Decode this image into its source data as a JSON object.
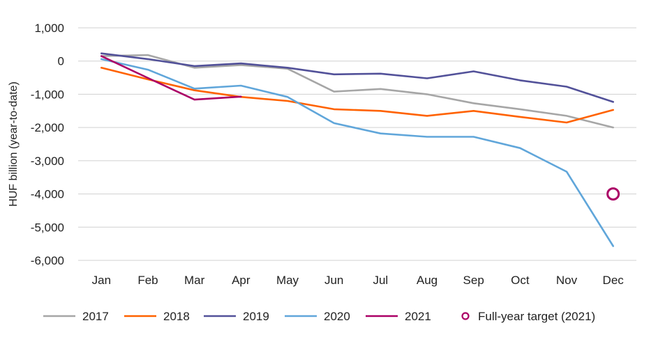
{
  "chart_data": {
    "type": "line",
    "title": "",
    "xlabel": "",
    "ylabel": "HUF billion (year-to-date)",
    "categories": [
      "Jan",
      "Feb",
      "Mar",
      "Apr",
      "May",
      "Jun",
      "Jul",
      "Aug",
      "Sep",
      "Oct",
      "Nov",
      "Dec"
    ],
    "ylim": [
      -6000,
      1000
    ],
    "yticks": [
      1000,
      0,
      -1000,
      -2000,
      -3000,
      -4000,
      -5000,
      -6000
    ],
    "ytick_labels": [
      "1,000",
      "0",
      "-1,000",
      "-2,000",
      "-3,000",
      "-4,000",
      "-5,000",
      "-6,000"
    ],
    "grid": "horizontal",
    "legend_position": "bottom",
    "series": [
      {
        "name": "2017",
        "color": "#a6a6a6",
        "values": [
          150,
          180,
          -200,
          -120,
          -230,
          -920,
          -840,
          -1000,
          -1270,
          -1450,
          -1650,
          -2000
        ]
      },
      {
        "name": "2018",
        "color": "#ff6200",
        "values": [
          -200,
          -550,
          -880,
          -1080,
          -1200,
          -1450,
          -1500,
          -1650,
          -1500,
          -1680,
          -1850,
          -1470
        ]
      },
      {
        "name": "2019",
        "color": "#525199",
        "values": [
          230,
          60,
          -150,
          -70,
          -200,
          -400,
          -380,
          -520,
          -310,
          -580,
          -770,
          -1230
        ]
      },
      {
        "name": "2020",
        "color": "#60a6da",
        "values": [
          60,
          -260,
          -830,
          -740,
          -1080,
          -1870,
          -2180,
          -2280,
          -2280,
          -2620,
          -3330,
          -5570
        ]
      },
      {
        "name": "2021",
        "color": "#ab0066",
        "values": [
          150,
          -510,
          -1160,
          -1070,
          null,
          null,
          null,
          null,
          null,
          null,
          null,
          null
        ]
      }
    ],
    "target": {
      "name": "Full-year target (2021)",
      "color": "#ab0066",
      "category": "Dec",
      "value": -4000
    }
  }
}
